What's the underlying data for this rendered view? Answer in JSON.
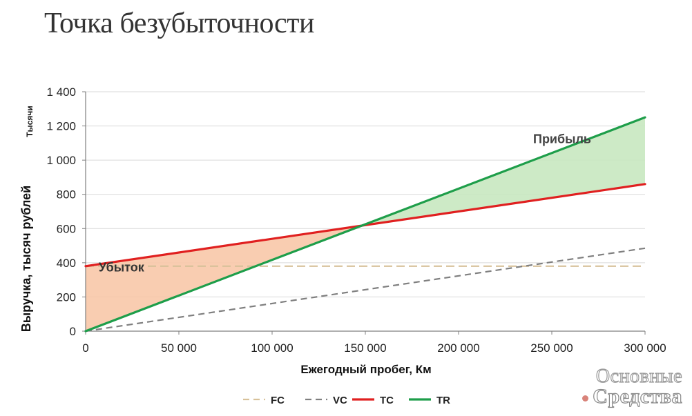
{
  "title": "Точка безубыточности",
  "watermark": {
    "line1": "Основные",
    "line2": "Средства"
  },
  "chart_data": {
    "type": "line",
    "xlabel": "Ежегодный пробег, Км",
    "ylabel": "Выручка, тысяч рублей",
    "yunit": "Тысячи",
    "xlim": [
      0,
      300000
    ],
    "ylim": [
      0,
      1400
    ],
    "xticks": [
      0,
      50000,
      100000,
      150000,
      200000,
      250000,
      300000
    ],
    "xtick_labels": [
      "0",
      "50 000",
      "100 000",
      "150 000",
      "200 000",
      "250 000",
      "300 000"
    ],
    "yticks": [
      0,
      200,
      400,
      600,
      800,
      1000,
      1200,
      1400
    ],
    "ytick_labels": [
      "0",
      "200",
      "400",
      "600",
      "800",
      "1 000",
      "1 200",
      "1 400"
    ],
    "grid": true,
    "legend_position": "bottom",
    "series": [
      {
        "name": "FC",
        "color": "#d8c19a",
        "style": "dashed",
        "x": [
          0,
          300000
        ],
        "y": [
          380,
          380
        ]
      },
      {
        "name": "VC",
        "color": "#7f7f7f",
        "style": "dashed",
        "x": [
          0,
          300000
        ],
        "y": [
          0,
          485
        ]
      },
      {
        "name": "TC",
        "color": "#e02020",
        "style": "solid",
        "x": [
          0,
          300000
        ],
        "y": [
          380,
          860
        ]
      },
      {
        "name": "TR",
        "color": "#1e9e4a",
        "style": "solid",
        "x": [
          0,
          300000
        ],
        "y": [
          0,
          1250
        ]
      }
    ],
    "regions": [
      {
        "label": "Убыток",
        "color": "#f8c8a8",
        "between": [
          "TC",
          "TR"
        ],
        "x_range": [
          0,
          150000
        ]
      },
      {
        "label": "Прибыль",
        "color": "#c8e8c0",
        "between": [
          "TC",
          "TR"
        ],
        "x_range": [
          150000,
          300000
        ]
      }
    ],
    "break_even": {
      "x": 150000,
      "y": 620
    }
  }
}
